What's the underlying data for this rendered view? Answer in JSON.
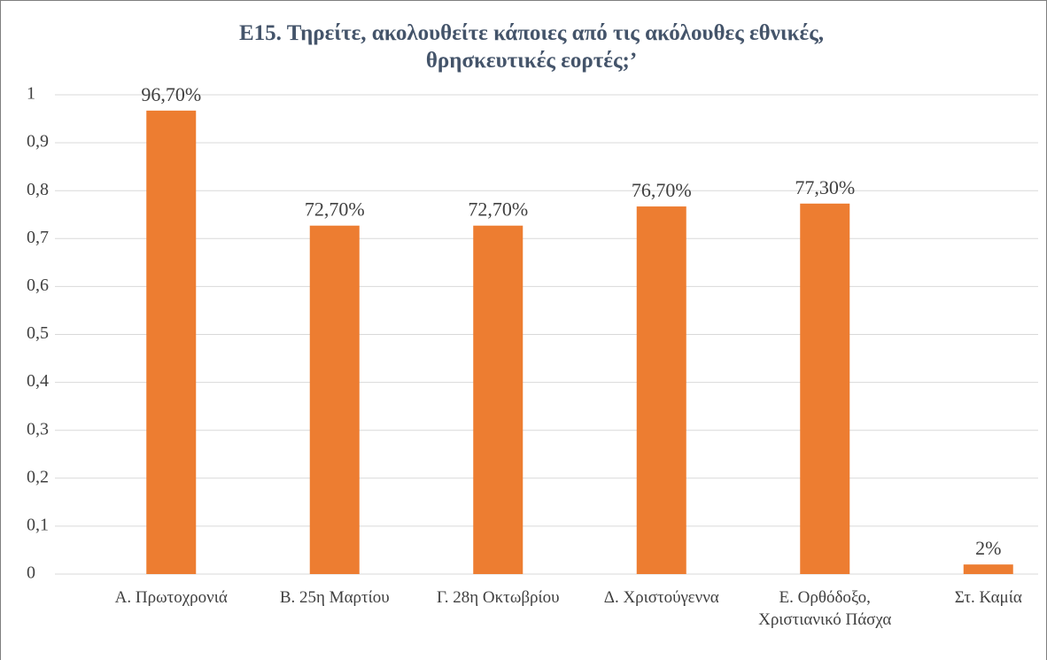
{
  "chart_data": {
    "type": "bar",
    "title": "Ε15. Τηρείτε, ακολουθείτε κάποιες από τις ακόλουθες εθνικές, θρησκευτικές εορτές;’",
    "categories": [
      "Α. Πρωτοχρονιά",
      "Β. 25η Μαρτίου",
      "Γ. 28η Οκτωβρίου",
      "Δ. Χριστούγεννα",
      "Ε. Ορθόδοξο, Χριστιανικό Πάσχα",
      "Στ. Καμία"
    ],
    "values": [
      0.967,
      0.727,
      0.727,
      0.767,
      0.773,
      0.02
    ],
    "value_labels": [
      "96,70%",
      "72,70%",
      "72,70%",
      "76,70%",
      "77,30%",
      "2%"
    ],
    "color": "#ed7d31",
    "ylim": [
      0,
      1
    ],
    "yticks": [
      0,
      {
        "value": 0.1,
        "label": "0,1"
      },
      {
        "value": 0.2,
        "label": "0,2"
      },
      {
        "value": 0.3,
        "label": "0,3"
      },
      {
        "value": 0.4,
        "label": "0,4"
      },
      {
        "value": 0.5,
        "label": "0,5"
      },
      {
        "value": 0.6,
        "label": "0,6"
      },
      {
        "value": 0.7,
        "label": "0,7"
      },
      {
        "value": 0.8,
        "label": "0,8"
      },
      {
        "value": 0.9,
        "label": "0,9"
      },
      1
    ],
    "grid": true
  }
}
